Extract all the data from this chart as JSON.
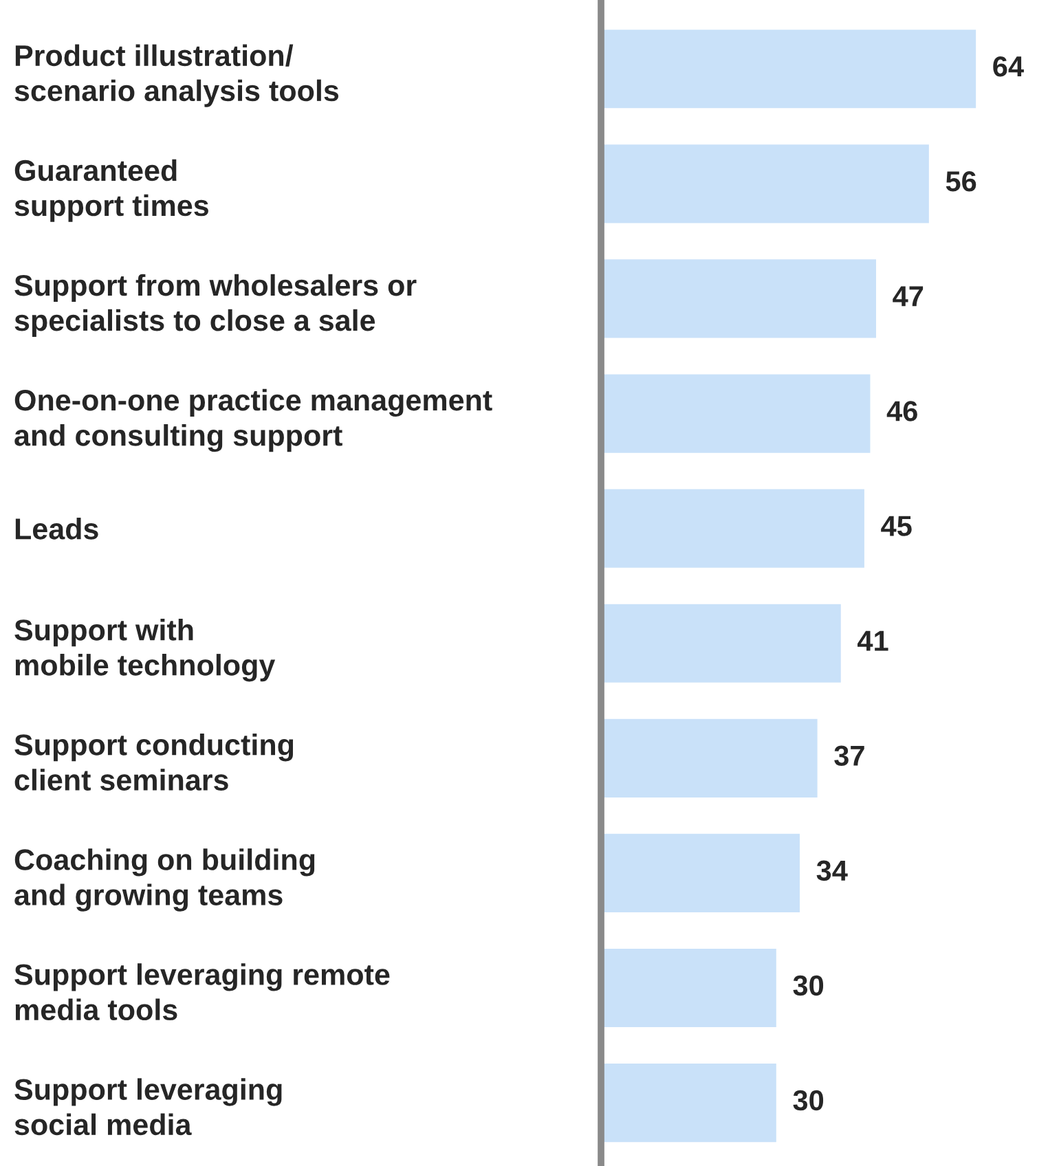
{
  "chart_data": {
    "type": "bar",
    "orientation": "horizontal",
    "categories": [
      "Product illustration/\nscenario analysis tools",
      "Guaranteed\nsupport times",
      "Support from wholesalers or\nspecialists to close a sale",
      "One-on-one practice management\nand consulting support",
      "Leads",
      "Support with\nmobile technology",
      "Support conducting\nclient seminars",
      "Coaching on building\nand growing teams",
      "Support leveraging remote\nmedia tools",
      "Support leveraging\nsocial media"
    ],
    "values": [
      64,
      56,
      47,
      46,
      45,
      41,
      37,
      34,
      30,
      30
    ],
    "color": "#c9e1f9",
    "data_labels": true,
    "grid": false,
    "legend": false
  }
}
